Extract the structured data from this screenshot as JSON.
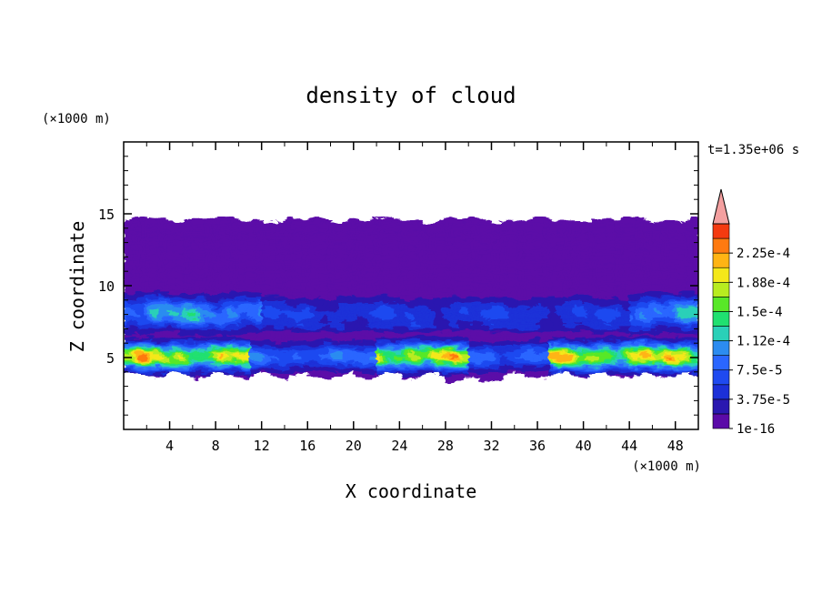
{
  "chart_data": {
    "type": "heatmap",
    "title": "density of cloud",
    "xlabel": "X coordinate",
    "ylabel": "Z coordinate",
    "x_unit": "(×1000 m)",
    "y_unit": "(×1000 m)",
    "time_label": "t=1.35e+06 s",
    "xlim": [
      0,
      50
    ],
    "ylim": [
      0,
      20
    ],
    "x_ticks": [
      4,
      8,
      12,
      16,
      20,
      24,
      28,
      32,
      36,
      40,
      44,
      48
    ],
    "x_tick_labels": [
      "4",
      "8",
      "12",
      "16",
      "20",
      "24",
      "28",
      "32",
      "36",
      "40",
      "44",
      "48"
    ],
    "y_ticks": [
      5,
      10,
      15
    ],
    "y_tick_labels": [
      "5",
      "10",
      "15"
    ],
    "colorbar": {
      "levels": [
        1e-16,
        1.875e-05,
        3.75e-05,
        5.625e-05,
        7.5e-05,
        9.375e-05,
        0.0001125,
        0.00013125,
        0.00015,
        0.00016875,
        0.0001875,
        0.00020625,
        0.000225,
        0.00024375
      ],
      "labels": [
        "1e-16",
        "3.75e-5",
        "7.5e-5",
        "1.12e-4",
        "1.5e-4",
        "1.88e-4",
        "2.25e-4"
      ],
      "colors": [
        "#5b0aa8",
        "#2a18b0",
        "#1c30d8",
        "#1f4af0",
        "#2a66ff",
        "#2c8cf0",
        "#2ad0b8",
        "#20e070",
        "#58e828",
        "#b8ec20",
        "#f4e81a",
        "#ffb414",
        "#ff7a10",
        "#f43a10"
      ],
      "extend_color": "#f4a0a0"
    },
    "cloud_layer": {
      "base_km": 3.7,
      "top_km": 14.6,
      "dense_layer_km": [
        4.0,
        6.2
      ],
      "upper_layer_km": [
        7.0,
        9.2
      ],
      "max_value": 0.00021
    }
  }
}
